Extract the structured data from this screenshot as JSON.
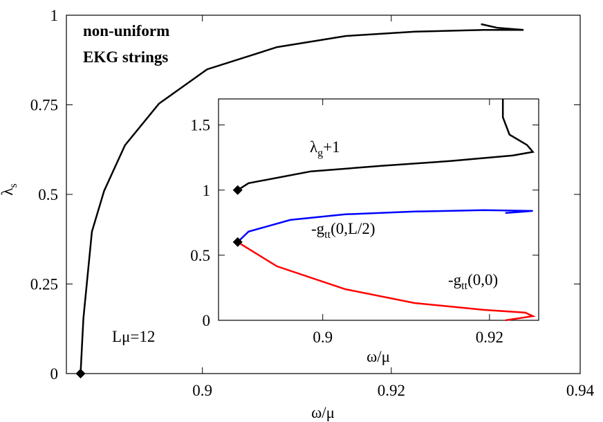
{
  "chart_data": [
    {
      "type": "line",
      "y_label_parts": [
        "λ",
        "s"
      ],
      "y_label_sub": [
        false,
        true
      ],
      "x_label": "ω/μ",
      "xlim": [
        0.8856,
        0.94
      ],
      "ylim": [
        0,
        1
      ],
      "xticks": [
        0.9,
        0.92,
        0.94
      ],
      "yticks": [
        0,
        0.25,
        0.5,
        0.75,
        1
      ],
      "annotations": [
        {
          "parts": [
            "non-uniform"
          ],
          "sub": [
            false
          ],
          "bold": true
        },
        {
          "parts": [
            "EKG strings"
          ],
          "sub": [
            false
          ],
          "bold": true
        },
        {
          "parts": [
            "Lμ=12"
          ],
          "sub": [
            false
          ],
          "bold": false
        }
      ],
      "series": [
        {
          "color": "#000000",
          "start_marker": true,
          "x": [
            0.8871,
            0.8874,
            0.8883,
            0.8896,
            0.8918,
            0.8954,
            0.9005,
            0.9079,
            0.9152,
            0.9225,
            0.9298,
            0.934,
            0.9312,
            0.9295
          ],
          "values": [
            0,
            0.154,
            0.396,
            0.51,
            0.637,
            0.753,
            0.849,
            0.911,
            0.942,
            0.954,
            0.959,
            0.959,
            0.965,
            0.975
          ]
        }
      ]
    },
    {
      "type": "line",
      "x_label": "ω/μ",
      "xlim": [
        0.8875,
        0.9259
      ],
      "ylim": [
        0,
        1.7
      ],
      "xticks": [
        0.9,
        0.92
      ],
      "yticks": [
        0,
        0.5,
        1,
        1.5
      ],
      "annotations": [
        {
          "parts": [
            "λ",
            "g",
            "+1"
          ],
          "sub": [
            false,
            true,
            false
          ],
          "bold": false
        },
        {
          "parts": [
            "-g",
            "tt",
            "(0,L/2)"
          ],
          "sub": [
            false,
            true,
            false
          ],
          "bold": false
        },
        {
          "parts": [
            "-g",
            "tt",
            "(0,0)"
          ],
          "sub": [
            false,
            true,
            false
          ],
          "bold": false
        }
      ],
      "series": [
        {
          "color": "#000000",
          "start_marker": true,
          "x": [
            0.8898,
            0.8911,
            0.8986,
            0.907,
            0.9153,
            0.9228,
            0.9252,
            0.9245,
            0.9224,
            0.9216,
            0.9216
          ],
          "values": [
            1.0,
            1.053,
            1.144,
            1.186,
            1.223,
            1.266,
            1.293,
            1.346,
            1.426,
            1.559,
            1.7
          ]
        },
        {
          "color": "#0000ff",
          "start_marker": true,
          "x": [
            0.8898,
            0.8911,
            0.8961,
            0.9027,
            0.911,
            0.9193,
            0.9252,
            0.9219
          ],
          "values": [
            0.601,
            0.681,
            0.771,
            0.814,
            0.835,
            0.846,
            0.84,
            0.824
          ]
        },
        {
          "color": "#ff0000",
          "start_marker": false,
          "x": [
            0.8898,
            0.8945,
            0.9027,
            0.911,
            0.9193,
            0.9243,
            0.9252,
            0.9219
          ],
          "values": [
            0.601,
            0.415,
            0.239,
            0.133,
            0.08,
            0.059,
            0.032,
            0
          ]
        }
      ]
    }
  ]
}
